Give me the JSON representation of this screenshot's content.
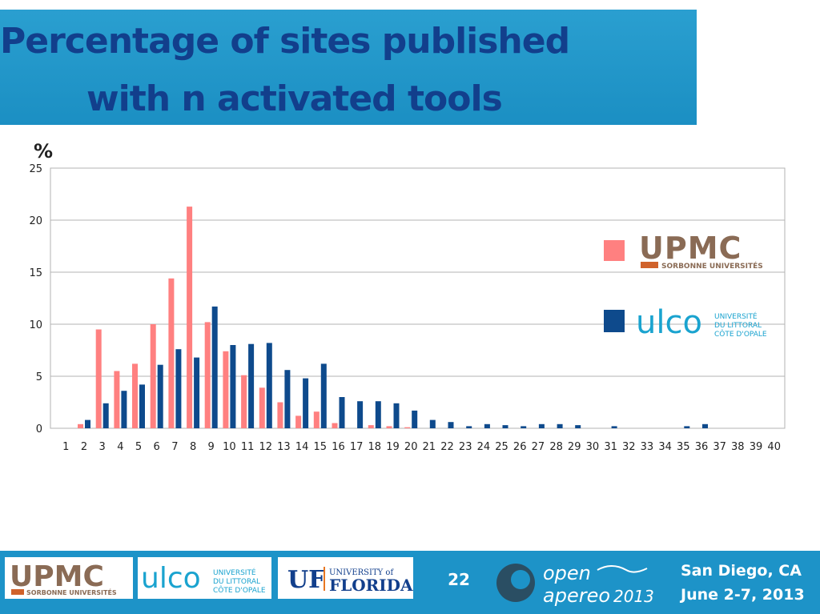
{
  "title": {
    "line1": "Percentage of sites published",
    "line2": "with n activated tools"
  },
  "y_unit": "%",
  "colors": {
    "upmc": "#ff8080",
    "ulco": "#0e4a8c",
    "title_bg": "#1b8fc3",
    "title_text": "#123f8c",
    "footer_bg": "#1d93c8"
  },
  "chart_data": {
    "type": "bar",
    "title": "Percentage of sites published with n activated tools",
    "xlabel": "",
    "ylabel": "%",
    "ylim": [
      0,
      25
    ],
    "yticks": [
      0,
      5,
      10,
      15,
      20,
      25
    ],
    "grid": true,
    "legend_position": "right",
    "categories": [
      "1",
      "2",
      "3",
      "4",
      "5",
      "6",
      "7",
      "8",
      "9",
      "10",
      "11",
      "12",
      "13",
      "14",
      "15",
      "16",
      "17",
      "18",
      "19",
      "20",
      "21",
      "22",
      "23",
      "24",
      "25",
      "26",
      "27",
      "28",
      "29",
      "30",
      "31",
      "32",
      "33",
      "34",
      "35",
      "36",
      "37",
      "38",
      "39",
      "40"
    ],
    "series": [
      {
        "name": "UPMC",
        "color": "#ff8080",
        "values": [
          0,
          0.4,
          9.5,
          5.5,
          6.2,
          10,
          14.4,
          21.3,
          10.2,
          7.4,
          5.1,
          3.9,
          2.5,
          1.2,
          1.6,
          0.5,
          0,
          0.3,
          0.2,
          0.1,
          0,
          0,
          0,
          0,
          0,
          0,
          0,
          0,
          0,
          0,
          0,
          0,
          0,
          0,
          0,
          0,
          0,
          0,
          0,
          0
        ]
      },
      {
        "name": "ULCO",
        "color": "#0e4a8c",
        "values": [
          0,
          0.8,
          2.4,
          3.6,
          4.2,
          6.1,
          7.6,
          6.8,
          11.7,
          8.0,
          8.1,
          8.2,
          5.6,
          4.8,
          6.2,
          3.0,
          2.6,
          2.6,
          2.4,
          1.7,
          0.8,
          0.6,
          0.2,
          0.4,
          0.3,
          0.2,
          0.4,
          0.4,
          0.3,
          0,
          0.2,
          0,
          0,
          0,
          0.2,
          0.4,
          0,
          0,
          0,
          0
        ]
      }
    ]
  },
  "legend": {
    "upmc_name": "UPMC",
    "upmc_sub": "SORBONNE UNIVERSITÉS",
    "ulco_name": "ulco",
    "ulco_sub": [
      "UNIVERSITÉ",
      "DU LITTORAL",
      "CÔTE D'OPALE"
    ]
  },
  "footer": {
    "upmc_name": "UPMC",
    "upmc_sub": "SORBONNE UNIVERSITÉS",
    "ulco_name": "ulco",
    "ulco_sub": [
      "UNIVERSITÉ",
      "DU LITTORAL",
      "CÔTE D'OPALE"
    ],
    "uf_mark": "UF",
    "uf_top": "UNIVERSITY of",
    "uf_name": "FLORIDA",
    "page_number": "22",
    "apereo_word1": "open",
    "apereo_word2": "apereo",
    "apereo_year": "2013",
    "event_location": "San Diego, CA",
    "event_dates": "June 2-7, 2013"
  }
}
